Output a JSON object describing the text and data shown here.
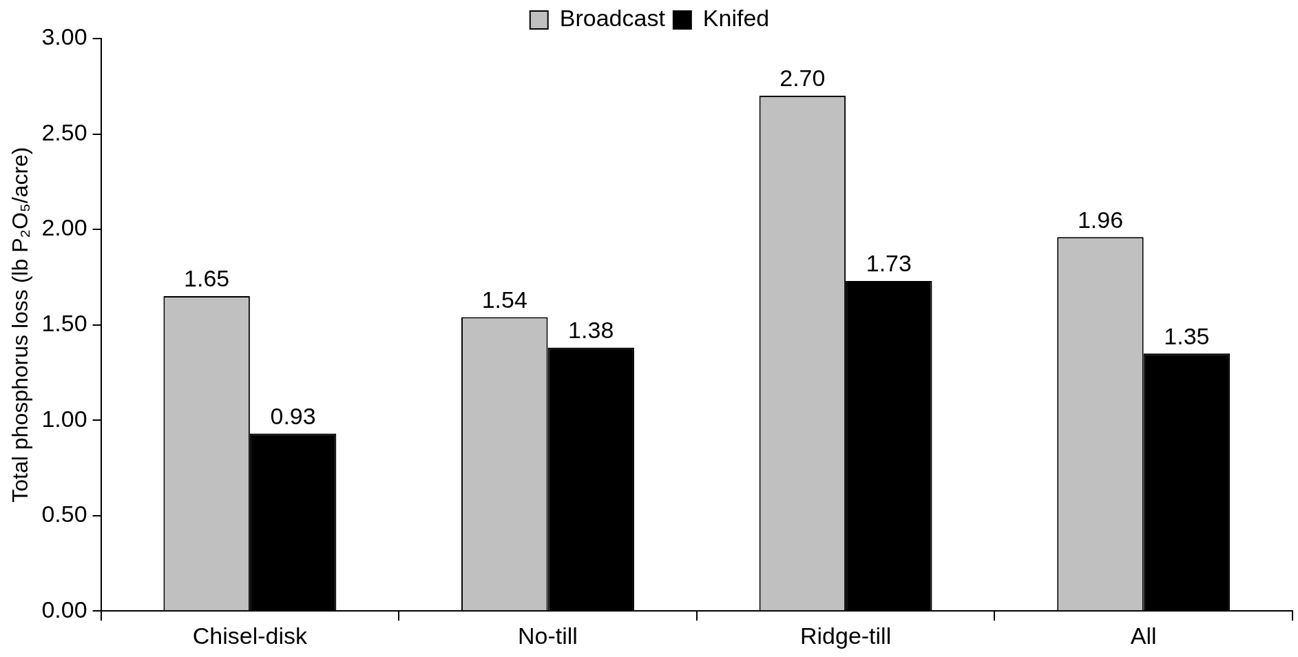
{
  "chart_data": {
    "type": "bar",
    "ylabel": "Total phosphorus loss (lb P₂O₅/acre)",
    "categories": [
      "Chisel-disk",
      "No-till",
      "Ridge-till",
      "All"
    ],
    "series": [
      {
        "name": "Broadcast",
        "color": "#c0c0c0",
        "values": [
          1.65,
          1.54,
          2.7,
          1.96
        ],
        "value_labels": [
          "1.65",
          "1.54",
          "2.70",
          "1.96"
        ]
      },
      {
        "name": "Knifed",
        "color": "#000000",
        "values": [
          0.93,
          1.38,
          1.73,
          1.35
        ],
        "value_labels": [
          "0.93",
          "1.38",
          "1.73",
          "1.35"
        ]
      }
    ],
    "ylim": [
      0,
      3
    ],
    "yticks": [
      {
        "value": 0,
        "label": "0.00"
      },
      {
        "value": 0.5,
        "label": "0.50"
      },
      {
        "value": 1,
        "label": "1.00"
      },
      {
        "value": 1.5,
        "label": "1.50"
      },
      {
        "value": 2,
        "label": "2.00"
      },
      {
        "value": 2.5,
        "label": "2.50"
      },
      {
        "value": 3,
        "label": "3.00"
      }
    ],
    "legend": "top",
    "grid": false
  }
}
